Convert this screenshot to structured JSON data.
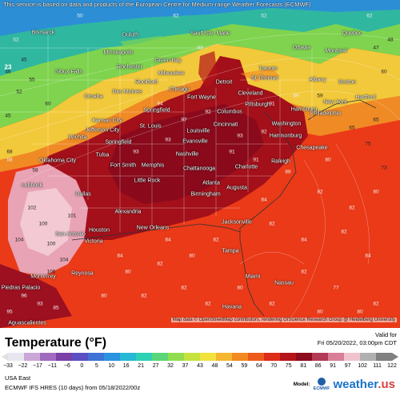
{
  "map": {
    "notice": "This service is based on data and products of the European Centre for Medium-range Weather Forecasts (ECMWF)",
    "attribution": "Map data © OpenStreetMap contributors, rendering GIScience Research Group @ Heidelberg University",
    "cities": [
      "Bismarck",
      "Duluth",
      "Sault Ste. Marie",
      "Quebec",
      "Minneapolis",
      "Ottawa",
      "Montreal",
      "Green Bay",
      "Sioux Falls",
      "Rochester",
      "Toronto",
      "Milwaukee",
      "Boston",
      "Rockford",
      "Detroit",
      "St Thomas",
      "Albany",
      "Omaha",
      "Des Moines",
      "Chicago",
      "Fort Wayne",
      "Cleveland",
      "Hartford",
      "New York",
      "Pittsburgh",
      "Springfield",
      "Columbus",
      "Harrisburg",
      "Philadelphia",
      "Kansas City",
      "Jefferson City",
      "St. Louis",
      "Cincinnati",
      "Washington",
      "Springfield",
      "Louisville",
      "Evansville",
      "Harrisonburg",
      "Wichita",
      "Chesapeake",
      "Oklahoma City",
      "Tulsa",
      "Nashville",
      "Raleigh",
      "Fort Smith",
      "Memphis",
      "Chattanooga",
      "Charlotte",
      "Lubbock",
      "Little Rock",
      "Atlanta",
      "Augusta",
      "Dallas",
      "Birmingham",
      "Alexandria",
      "Jacksonville",
      "San Antonio",
      "Houston",
      "New Orleans",
      "Victoria",
      "Tampa",
      "Reynosa",
      "Monterrey",
      "Miami",
      "Nassau",
      "Piedras Palacio",
      "Aguascalientes",
      "Havana"
    ],
    "values": [
      "52",
      "50",
      "62",
      "52",
      "62",
      "60",
      "52",
      "60",
      "59",
      "65",
      "65",
      "75",
      "73",
      "58",
      "58",
      "82",
      "82",
      "84",
      "84",
      "77",
      "82",
      "93",
      "94",
      "97",
      "93",
      "93",
      "92",
      "93",
      "92",
      "91",
      "89",
      "91",
      "91",
      "88",
      "84",
      "82",
      "82",
      "80",
      "82",
      "80",
      "80",
      "82",
      "82",
      "82",
      "82",
      "82",
      "82",
      "80",
      "80",
      "84",
      "84",
      "80",
      "80",
      "80",
      "68",
      "100",
      "100",
      "104",
      "106",
      "104",
      "102",
      "101",
      "95",
      "96",
      "93",
      "85",
      "48",
      "47",
      "46",
      "45",
      "45",
      "55"
    ],
    "region_number": "23"
  },
  "legend": {
    "title": "Temperature",
    "unit": "(°F)",
    "valid_for_label": "Valid for",
    "valid_time": "Fri 05/20/2022, 03:00pm CDT",
    "ticks": [
      "−33",
      "−22",
      "−17",
      "−11",
      "−6",
      "0",
      "5",
      "10",
      "16",
      "21",
      "27",
      "32",
      "37",
      "43",
      "48",
      "54",
      "59",
      "64",
      "70",
      "75",
      "81",
      "86",
      "91",
      "97",
      "102",
      "111",
      "122"
    ],
    "colors": [
      "#e9e6f2",
      "#c9a7d6",
      "#a06bbf",
      "#7b3fa8",
      "#5b4fc2",
      "#3f71d6",
      "#2b94e0",
      "#28b9d8",
      "#2dd2b6",
      "#5bd77b",
      "#92dd4f",
      "#c6e23e",
      "#f2e23c",
      "#f5b72f",
      "#f28a24",
      "#ec5a1c",
      "#dd2d18",
      "#b4141a",
      "#8c0c1e",
      "#b23a56",
      "#d97e97",
      "#f0c4cf",
      "#b0b0b0",
      "#808080"
    ],
    "region": "USA East",
    "model": "ECMWF IFS HRES (10 days) from 05/18/2022/00z",
    "model_label": "Model:",
    "ecmwf_label": "ECMWF",
    "brand_main": "weather",
    "brand_suffix": ".us"
  }
}
